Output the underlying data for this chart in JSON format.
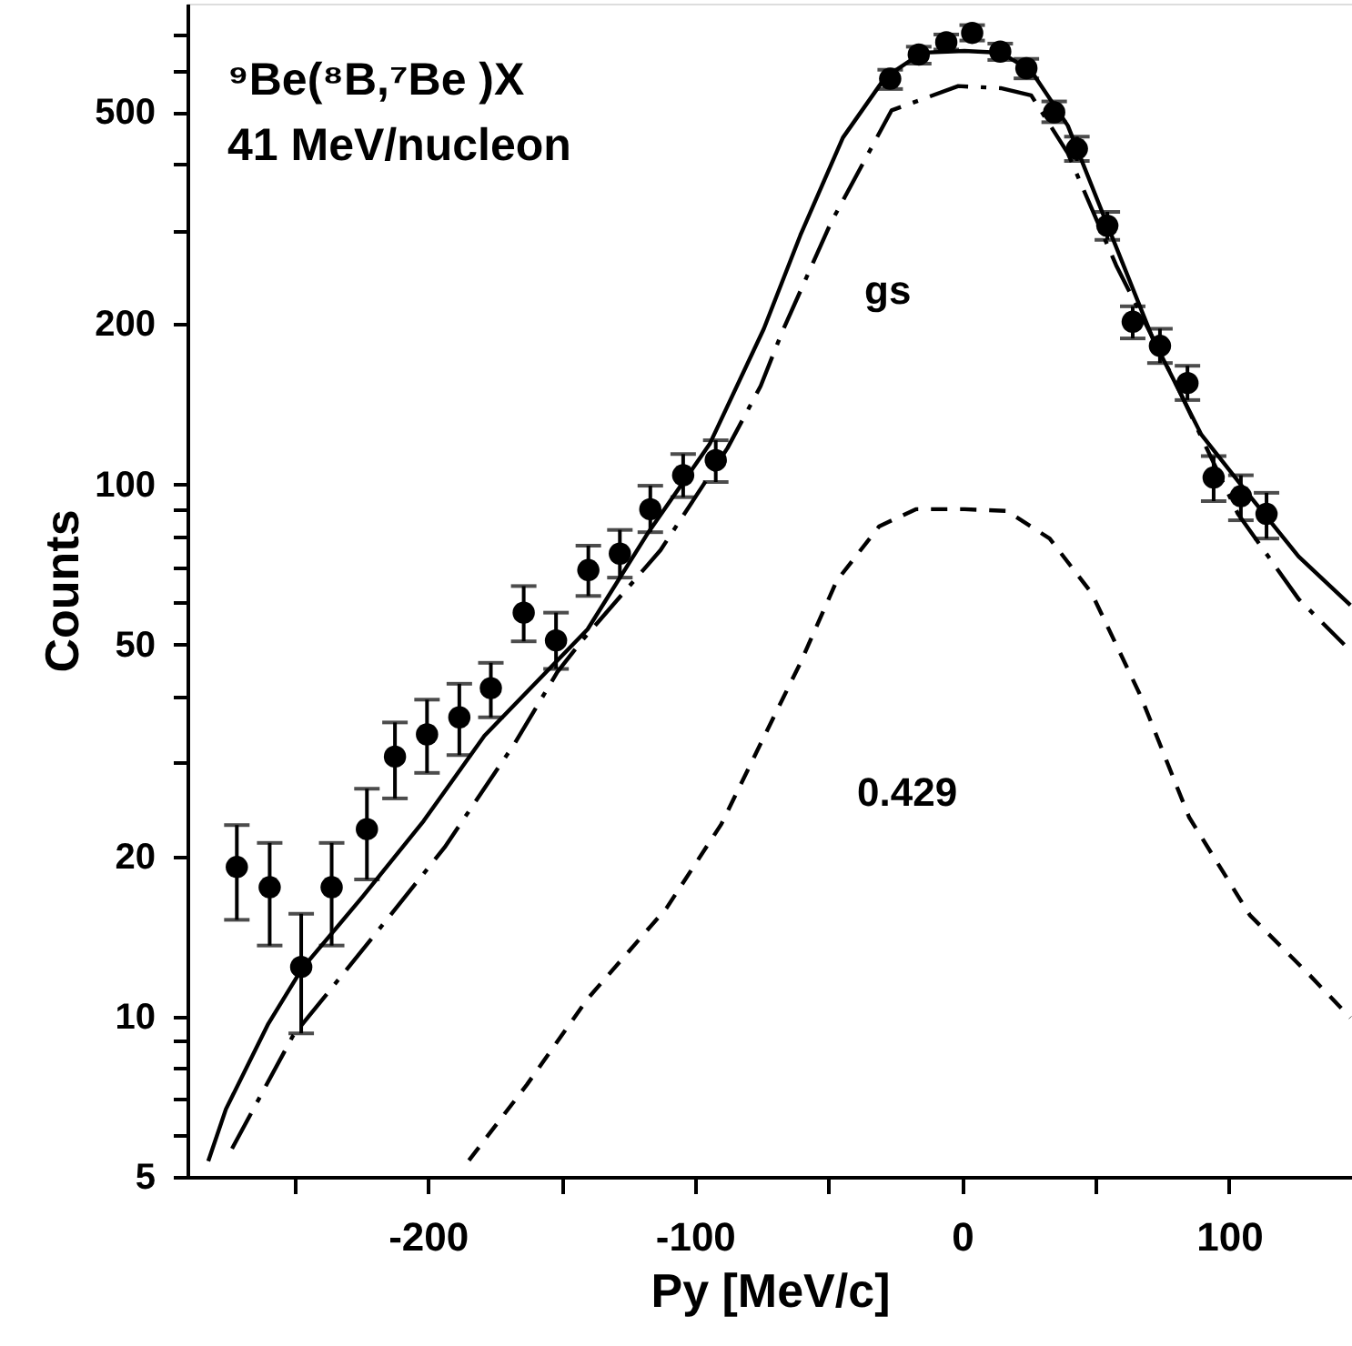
{
  "chart_data": {
    "type": "scatter",
    "xlabel": "Py  [MeV/c]",
    "ylabel": "Counts",
    "log": "y",
    "grid": false,
    "xlim": [
      -290,
      146
    ],
    "xticks": [
      {
        "value": -250,
        "label": null
      },
      -200,
      {
        "value": -150,
        "label": null
      },
      -100,
      {
        "value": -50,
        "label": null
      },
      0,
      {
        "value": 50,
        "label": null
      },
      100
    ],
    "ylim": [
      5,
      800
    ],
    "yticks": [
      5,
      {
        "value": 6,
        "label": null
      },
      {
        "value": 7,
        "label": null
      },
      {
        "value": 8,
        "label": null
      },
      {
        "value": 9,
        "label": null
      },
      10,
      20,
      {
        "value": 30,
        "label": null
      },
      {
        "value": 40,
        "label": null
      },
      50,
      {
        "value": 60,
        "label": null
      },
      {
        "value": 70,
        "label": null
      },
      {
        "value": 80,
        "label": null
      },
      {
        "value": 90,
        "label": null
      },
      100,
      200,
      {
        "value": 300,
        "label": null
      },
      {
        "value": 400,
        "label": null
      },
      500,
      {
        "value": 600,
        "label": null
      },
      {
        "value": 700,
        "label": null
      }
    ],
    "annotations": [
      "⁹Be(⁸B,⁷Be )X",
      "41 MeV/nucleon",
      "gs",
      "0.429"
    ],
    "series": [
      {
        "marker": "circle",
        "color": "#000000",
        "x": [
          -271.5,
          -259.2,
          -247.4,
          -236,
          -222.8,
          -212.3,
          -200.3,
          -188.2,
          -176.4,
          -164.1,
          -152,
          -139.9,
          -128.1,
          -116.7,
          -104.4,
          -92.2,
          -26.9,
          -16.2,
          -5.9,
          3.8,
          14.3,
          24.1,
          34.5,
          43,
          54.4,
          63.9,
          74.1,
          84.4,
          94.2,
          104.4,
          114
        ],
        "values": [
          19.1,
          17.5,
          12.4,
          17.5,
          22.5,
          30.8,
          33.9,
          36.5,
          41.4,
          57.4,
          50.9,
          69,
          74.1,
          89.8,
          104,
          111,
          578,
          642,
          677,
          705,
          650,
          605,
          500,
          427,
          306,
          202,
          182,
          155,
          103,
          95,
          88
        ],
        "errors": [
          [
            15.2,
            22.9
          ],
          [
            13.6,
            21.2
          ],
          [
            9.3,
            15.6
          ],
          [
            13.6,
            21.2
          ],
          [
            18.1,
            26.8
          ],
          [
            25.7,
            35.7
          ],
          [
            28.7,
            39.4
          ],
          [
            31,
            42.2
          ],
          [
            36.5,
            46.2
          ],
          [
            50.7,
            64.4
          ],
          [
            45,
            57.4
          ],
          [
            61.7,
            76.7
          ],
          [
            66.8,
            82.1
          ],
          [
            81.3,
            99.4
          ],
          [
            94.6,
            114
          ],
          [
            101,
            121
          ],
          [
            553,
            601
          ],
          [
            617,
            664
          ],
          [
            656,
            700
          ],
          [
            682,
            729
          ],
          [
            627,
            673
          ],
          [
            579,
            630
          ],
          [
            479,
            524
          ],
          [
            405,
            450
          ],
          [
            288,
            325
          ],
          [
            188,
            216
          ],
          [
            169,
            196
          ],
          [
            144,
            167
          ],
          [
            93,
            113
          ],
          [
            85.6,
            104
          ],
          [
            79.1,
            96.4
          ]
        ]
      },
      {
        "type": "line",
        "line_style": "solid",
        "color": "#000000",
        "x": [
          -282.2,
          -275.6,
          -259.7,
          -247.1,
          -224.4,
          -201.6,
          -178.8,
          -140.2,
          -117.4,
          -94.5,
          -74.2,
          -60.5,
          -44.6,
          -28.7,
          -15,
          0.9,
          14.5,
          25.9,
          39.6,
          53.2,
          71.4,
          89.6,
          107.8,
          126,
          145.4
        ],
        "values": [
          5.35,
          6.7,
          9.7,
          12.3,
          16.8,
          23.3,
          33.7,
          53.4,
          81.3,
          119,
          196,
          294,
          448,
          582,
          647,
          652,
          647,
          598,
          472,
          318,
          188,
          124,
          95,
          73.2,
          59.3
        ]
      },
      {
        "type": "line",
        "line_style": "dashed",
        "color": "#000000",
        "x": [
          -273.3,
          -250.5,
          -222.1,
          -193.7,
          -167.5,
          -151.5,
          -142.5,
          -112.9,
          -87.8,
          -75.4,
          -67.4,
          -49.1,
          -26.4,
          -1.4,
          14.5,
          25.9,
          39.6,
          57.7,
          80.5,
          103.3,
          126,
          143.1
        ],
        "values": [
          5.65,
          9.2,
          13.8,
          20.8,
          32.6,
          44.4,
          50.7,
          75.2,
          117,
          153,
          193,
          310,
          504,
          560,
          555,
          538,
          419,
          258,
          153,
          88,
          60.9,
          50
        ]
      },
      {
        "type": "line",
        "line_style": "dotted",
        "color": "#000000",
        "x": [
          -184.6,
          -162.9,
          -140.2,
          -110.6,
          -90.1,
          -74.2,
          -60.5,
          -46.9,
          -31,
          -17.3,
          0.9,
          16.8,
          32.8,
          48.5,
          66.9,
          85,
          107.8,
          130.6,
          145.4
        ],
        "values": [
          5.37,
          7.45,
          10.8,
          16,
          23,
          33.5,
          46.2,
          65.9,
          83.4,
          89.8,
          89.8,
          89.1,
          79.1,
          62.5,
          40,
          23.7,
          15.5,
          11.9,
          9.95
        ]
      }
    ]
  }
}
